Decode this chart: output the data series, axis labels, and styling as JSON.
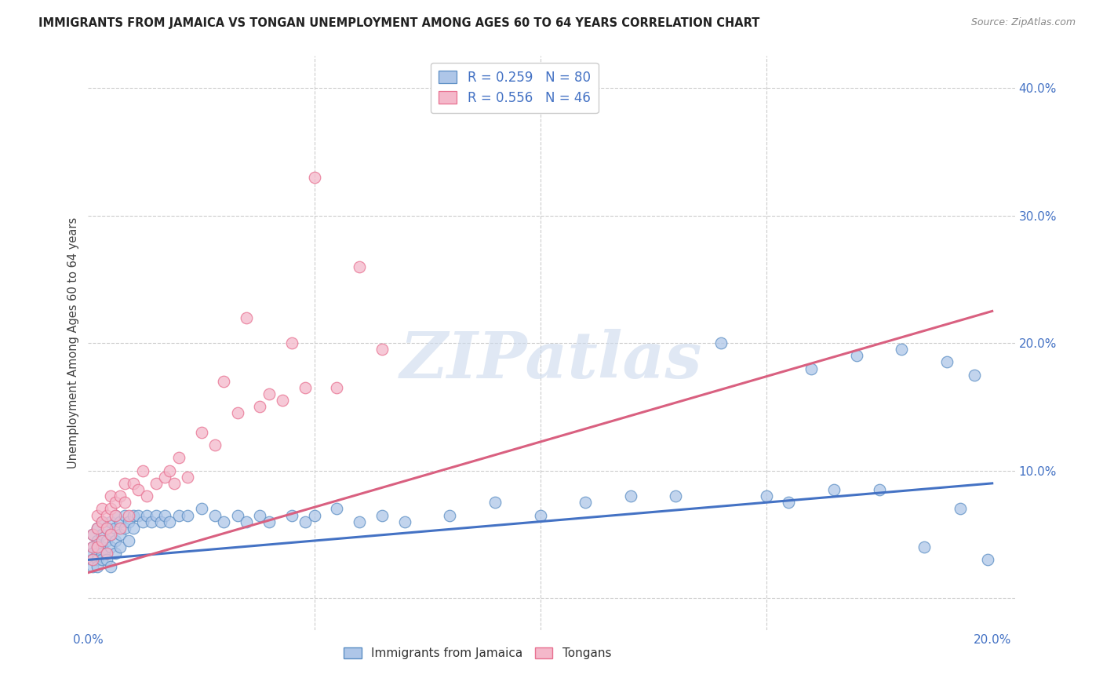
{
  "title": "IMMIGRANTS FROM JAMAICA VS TONGAN UNEMPLOYMENT AMONG AGES 60 TO 64 YEARS CORRELATION CHART",
  "source": "Source: ZipAtlas.com",
  "ylabel": "Unemployment Among Ages 60 to 64 years",
  "xlim": [
    0.0,
    0.205
  ],
  "ylim": [
    -0.025,
    0.425
  ],
  "background_color": "#ffffff",
  "grid_color": "#cccccc",
  "watermark": "ZIPatlas",
  "jamaica_color": "#aec6e8",
  "tongan_color": "#f4b8ca",
  "jamaica_edge_color": "#5b8ec4",
  "tongan_edge_color": "#e87090",
  "jamaica_line_color": "#4472c4",
  "tongan_line_color": "#d96080",
  "jamaica_R": 0.259,
  "jamaica_N": 80,
  "tongan_R": 0.556,
  "tongan_N": 46,
  "legend_text_color": "#4472c4",
  "jamaica_x": [
    0.001,
    0.001,
    0.001,
    0.001,
    0.001,
    0.002,
    0.002,
    0.002,
    0.002,
    0.002,
    0.002,
    0.003,
    0.003,
    0.003,
    0.003,
    0.003,
    0.004,
    0.004,
    0.004,
    0.004,
    0.005,
    0.005,
    0.005,
    0.005,
    0.006,
    0.006,
    0.006,
    0.006,
    0.007,
    0.007,
    0.007,
    0.008,
    0.008,
    0.009,
    0.009,
    0.01,
    0.01,
    0.011,
    0.012,
    0.013,
    0.014,
    0.015,
    0.016,
    0.017,
    0.018,
    0.02,
    0.022,
    0.025,
    0.028,
    0.03,
    0.033,
    0.035,
    0.038,
    0.04,
    0.045,
    0.048,
    0.05,
    0.055,
    0.06,
    0.065,
    0.07,
    0.08,
    0.09,
    0.1,
    0.11,
    0.12,
    0.13,
    0.14,
    0.15,
    0.155,
    0.16,
    0.165,
    0.17,
    0.175,
    0.18,
    0.185,
    0.19,
    0.193,
    0.196,
    0.199
  ],
  "jamaica_y": [
    0.04,
    0.035,
    0.05,
    0.03,
    0.025,
    0.045,
    0.04,
    0.035,
    0.03,
    0.055,
    0.025,
    0.06,
    0.05,
    0.04,
    0.035,
    0.03,
    0.055,
    0.045,
    0.035,
    0.03,
    0.06,
    0.05,
    0.04,
    0.025,
    0.065,
    0.055,
    0.045,
    0.035,
    0.06,
    0.05,
    0.04,
    0.065,
    0.055,
    0.06,
    0.045,
    0.065,
    0.055,
    0.065,
    0.06,
    0.065,
    0.06,
    0.065,
    0.06,
    0.065,
    0.06,
    0.065,
    0.065,
    0.07,
    0.065,
    0.06,
    0.065,
    0.06,
    0.065,
    0.06,
    0.065,
    0.06,
    0.065,
    0.07,
    0.06,
    0.065,
    0.06,
    0.065,
    0.075,
    0.065,
    0.075,
    0.08,
    0.08,
    0.2,
    0.08,
    0.075,
    0.18,
    0.085,
    0.19,
    0.085,
    0.195,
    0.04,
    0.185,
    0.07,
    0.175,
    0.03
  ],
  "tongan_x": [
    0.001,
    0.001,
    0.001,
    0.002,
    0.002,
    0.002,
    0.003,
    0.003,
    0.003,
    0.004,
    0.004,
    0.004,
    0.005,
    0.005,
    0.005,
    0.006,
    0.006,
    0.007,
    0.007,
    0.008,
    0.008,
    0.009,
    0.01,
    0.011,
    0.012,
    0.013,
    0.015,
    0.017,
    0.018,
    0.019,
    0.02,
    0.022,
    0.025,
    0.028,
    0.03,
    0.033,
    0.035,
    0.038,
    0.04,
    0.043,
    0.045,
    0.048,
    0.05,
    0.055,
    0.06,
    0.065
  ],
  "tongan_y": [
    0.03,
    0.05,
    0.04,
    0.055,
    0.065,
    0.04,
    0.06,
    0.045,
    0.07,
    0.055,
    0.065,
    0.035,
    0.07,
    0.05,
    0.08,
    0.065,
    0.075,
    0.08,
    0.055,
    0.075,
    0.09,
    0.065,
    0.09,
    0.085,
    0.1,
    0.08,
    0.09,
    0.095,
    0.1,
    0.09,
    0.11,
    0.095,
    0.13,
    0.12,
    0.17,
    0.145,
    0.22,
    0.15,
    0.16,
    0.155,
    0.2,
    0.165,
    0.33,
    0.165,
    0.26,
    0.195
  ],
  "jamaica_trend": [
    0.03,
    0.09
  ],
  "tongan_trend": [
    0.02,
    0.225
  ],
  "xtick_positions": [
    0.0,
    0.05,
    0.1,
    0.15,
    0.2
  ],
  "xtick_labels": [
    "0.0%",
    "",
    "",
    "",
    "20.0%"
  ],
  "ytick_positions": [
    0.0,
    0.1,
    0.2,
    0.3,
    0.4
  ],
  "ytick_labels": [
    "",
    "10.0%",
    "20.0%",
    "30.0%",
    "40.0%"
  ]
}
